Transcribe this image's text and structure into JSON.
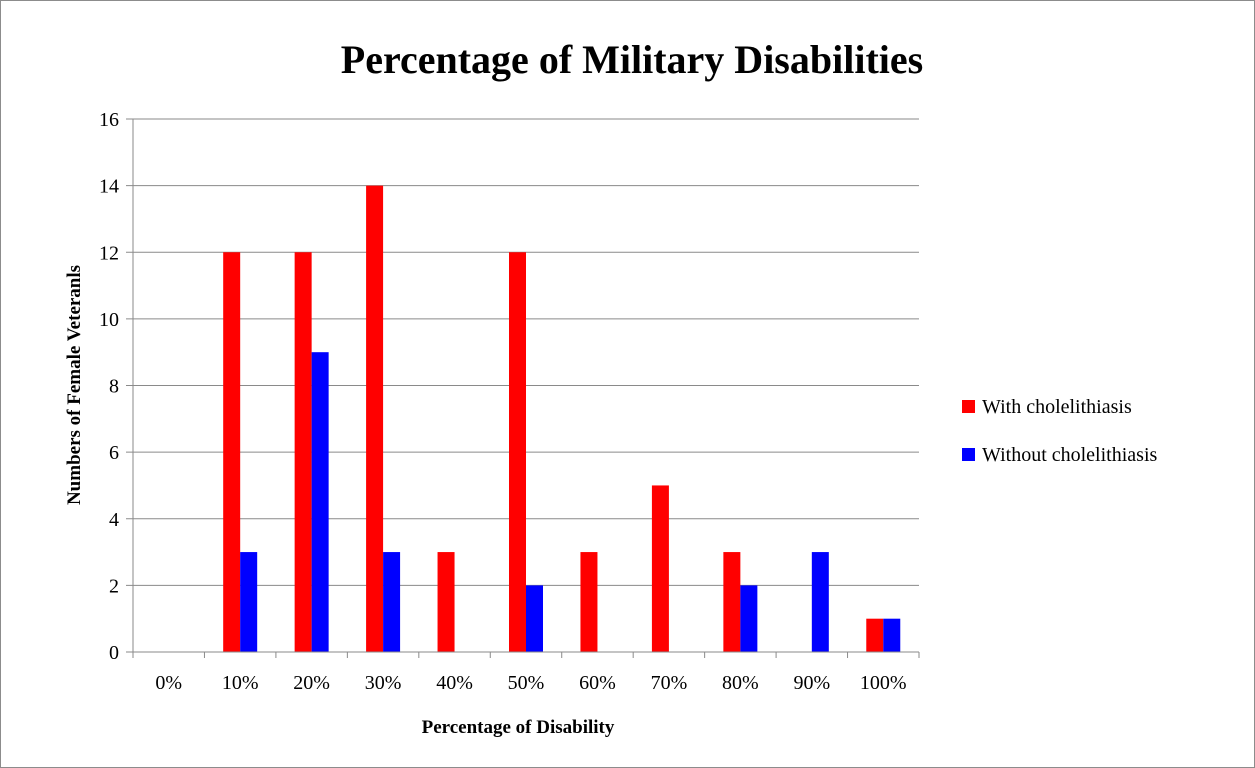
{
  "chart_data": {
    "type": "bar",
    "title": "Percentage of Military Disabilities",
    "xlabel": "Percentage of Disability",
    "ylabel": "Numbers of Female Veteranls",
    "categories": [
      "0%",
      "10%",
      "20%",
      "30%",
      "40%",
      "50%",
      "60%",
      "70%",
      "80%",
      "90%",
      "100%"
    ],
    "series": [
      {
        "name": "With cholelithiasis",
        "color": "#ff0000",
        "values": [
          0,
          12,
          12,
          14,
          3,
          12,
          3,
          5,
          3,
          0,
          1
        ]
      },
      {
        "name": "Without cholelithiasis",
        "color": "#0000ff",
        "values": [
          0,
          3,
          9,
          3,
          0,
          2,
          0,
          0,
          2,
          3,
          1
        ]
      }
    ],
    "ylim": [
      0,
      16
    ],
    "yticks": [
      0,
      2,
      4,
      6,
      8,
      10,
      12,
      14,
      16
    ],
    "grid": true,
    "legend_position": "right"
  }
}
